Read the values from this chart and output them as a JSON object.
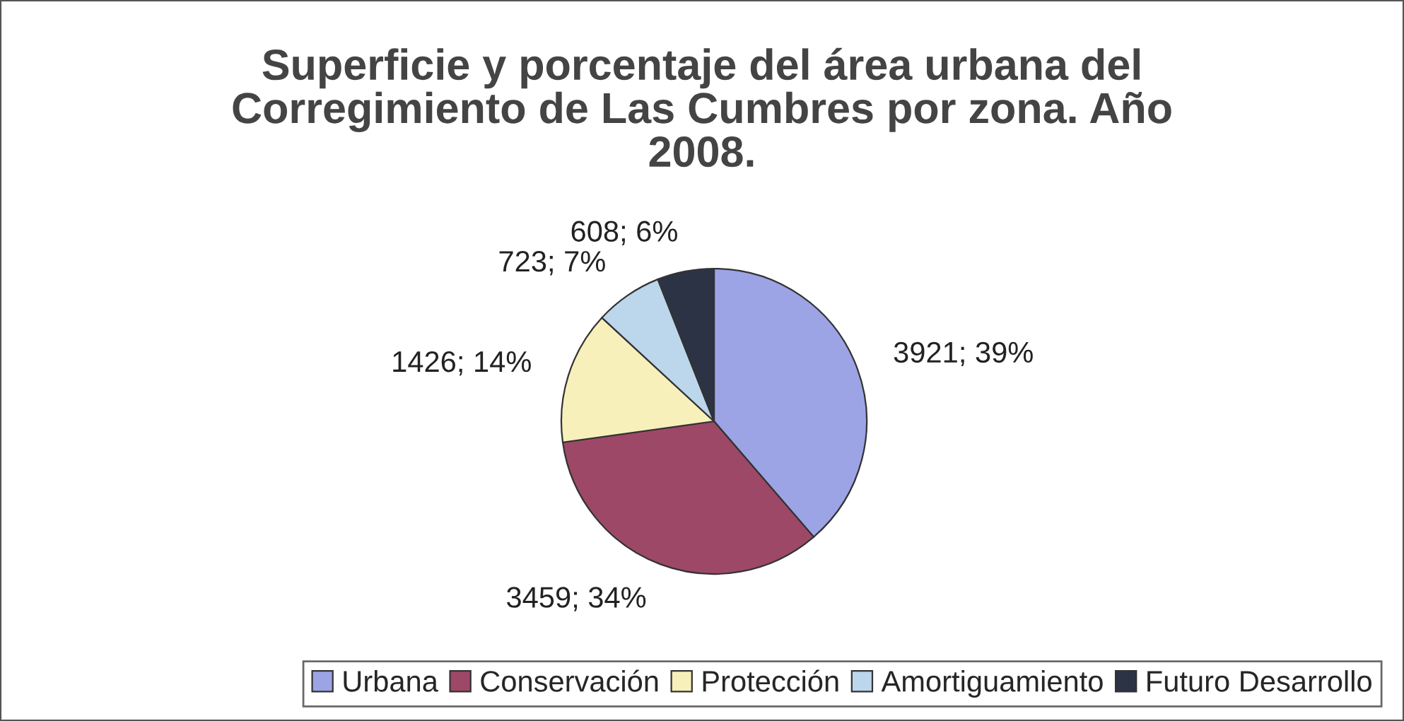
{
  "chart_data": {
    "type": "pie",
    "title": "Superficie y porcentaje del área urbana del\nCorregimiento de Las Cumbres por zona. Año\n2008.",
    "categories": [
      "Urbana",
      "Conservación",
      "Protección",
      "Amortiguamiento",
      "Futuro Desarrollo"
    ],
    "values": [
      3921,
      3459,
      1426,
      723,
      608
    ],
    "colors": [
      "#9ca4e6",
      "#9e4868",
      "#f8f0ba",
      "#bcd6ec",
      "#2b3344"
    ],
    "value_labels": [
      "3921; 39%",
      "3459; 34%",
      "1426; 14%",
      "723; 7%",
      "608; 6%"
    ],
    "legend": "bottom"
  }
}
